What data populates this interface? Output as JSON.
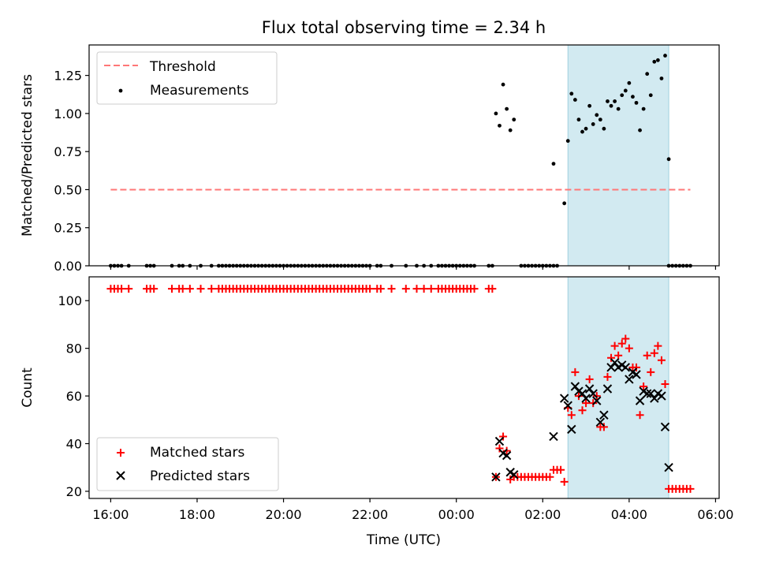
{
  "title": "Flux total observing time = 2.34 h",
  "xlabel": "Time (UTC)",
  "x_ticks": [
    "16:00",
    "18:00",
    "20:00",
    "22:00",
    "00:00",
    "02:00",
    "04:00",
    "06:00"
  ],
  "shade_color": "#add8e6",
  "chart_data": [
    {
      "type": "scatter",
      "ylabel": "Matched/Predicted stars",
      "ylim": [
        0,
        1.45
      ],
      "xlim": [
        "15:30",
        "06:05"
      ],
      "y_ticks": [
        "0.00",
        "0.25",
        "0.50",
        "0.75",
        "1.00",
        "1.25"
      ],
      "shaded_interval": [
        "02:35",
        "04:55"
      ],
      "legend": {
        "placement": "top-left",
        "entries": [
          "Threshold",
          "Measurements"
        ]
      },
      "threshold": {
        "name": "Threshold",
        "value": 0.5,
        "x_range": [
          "16:00",
          "05:25"
        ],
        "color": "#ff7777"
      },
      "measurements_zero_times": [
        "16:00",
        "16:05",
        "16:10",
        "16:15",
        "16:25",
        "16:50",
        "16:55",
        "17:00",
        "17:25",
        "17:35",
        "17:40",
        "17:50",
        "18:05",
        "18:20",
        "18:30",
        "18:35",
        "18:40",
        "18:45",
        "18:50",
        "18:55",
        "19:00",
        "19:05",
        "19:10",
        "19:15",
        "19:20",
        "19:25",
        "19:30",
        "19:35",
        "19:40",
        "19:45",
        "19:50",
        "19:55",
        "20:00",
        "20:05",
        "20:10",
        "20:15",
        "20:20",
        "20:25",
        "20:30",
        "20:35",
        "20:40",
        "20:45",
        "20:50",
        "20:55",
        "21:00",
        "21:05",
        "21:10",
        "21:15",
        "21:20",
        "21:25",
        "21:30",
        "21:35",
        "21:40",
        "21:45",
        "21:50",
        "21:55",
        "22:00",
        "22:10",
        "22:15",
        "22:30",
        "22:50",
        "23:05",
        "23:15",
        "23:25",
        "23:35",
        "23:40",
        "23:45",
        "23:50",
        "23:55",
        "00:00",
        "00:05",
        "00:10",
        "00:15",
        "00:20",
        "00:25",
        "00:45",
        "00:50",
        "01:30",
        "01:35",
        "01:40",
        "01:45",
        "01:50",
        "01:55",
        "02:00",
        "02:05",
        "02:10",
        "02:15",
        "02:20",
        "04:55",
        "05:00",
        "05:05",
        "05:10",
        "05:15",
        "05:20",
        "05:25"
      ],
      "measurements": [
        {
          "t": "00:55",
          "v": 1.0
        },
        {
          "t": "01:00",
          "v": 0.92
        },
        {
          "t": "01:05",
          "v": 1.19
        },
        {
          "t": "01:10",
          "v": 1.03
        },
        {
          "t": "01:15",
          "v": 0.89
        },
        {
          "t": "01:20",
          "v": 0.96
        },
        {
          "t": "02:15",
          "v": 0.67
        },
        {
          "t": "02:30",
          "v": 0.41
        },
        {
          "t": "02:35",
          "v": 0.82
        },
        {
          "t": "02:40",
          "v": 1.13
        },
        {
          "t": "02:45",
          "v": 1.09
        },
        {
          "t": "02:50",
          "v": 0.96
        },
        {
          "t": "02:55",
          "v": 0.88
        },
        {
          "t": "03:00",
          "v": 0.9
        },
        {
          "t": "03:05",
          "v": 1.05
        },
        {
          "t": "03:10",
          "v": 0.93
        },
        {
          "t": "03:15",
          "v": 0.99
        },
        {
          "t": "03:20",
          "v": 0.96
        },
        {
          "t": "03:25",
          "v": 0.9
        },
        {
          "t": "03:30",
          "v": 1.08
        },
        {
          "t": "03:35",
          "v": 1.05
        },
        {
          "t": "03:40",
          "v": 1.08
        },
        {
          "t": "03:45",
          "v": 1.03
        },
        {
          "t": "03:50",
          "v": 1.12
        },
        {
          "t": "03:55",
          "v": 1.15
        },
        {
          "t": "04:00",
          "v": 1.2
        },
        {
          "t": "04:05",
          "v": 1.11
        },
        {
          "t": "04:10",
          "v": 1.07
        },
        {
          "t": "04:15",
          "v": 0.89
        },
        {
          "t": "04:20",
          "v": 1.03
        },
        {
          "t": "04:25",
          "v": 1.26
        },
        {
          "t": "04:30",
          "v": 1.12
        },
        {
          "t": "04:35",
          "v": 1.34
        },
        {
          "t": "04:40",
          "v": 1.35
        },
        {
          "t": "04:45",
          "v": 1.23
        },
        {
          "t": "04:50",
          "v": 1.38
        },
        {
          "t": "04:55",
          "v": 0.7
        }
      ]
    },
    {
      "type": "scatter",
      "ylabel": "Count",
      "ylim": [
        17,
        110
      ],
      "xlim": [
        "15:30",
        "06:05"
      ],
      "y_ticks": [
        "20",
        "40",
        "60",
        "80",
        "100"
      ],
      "shaded_interval": [
        "02:35",
        "04:55"
      ],
      "legend": {
        "placement": "bottom-left",
        "entries": [
          "Matched stars",
          "Predicted stars"
        ]
      },
      "matched_105_times": [
        "16:00",
        "16:05",
        "16:10",
        "16:15",
        "16:25",
        "16:50",
        "16:55",
        "17:00",
        "17:25",
        "17:35",
        "17:40",
        "17:50",
        "18:05",
        "18:20",
        "18:30",
        "18:35",
        "18:40",
        "18:45",
        "18:50",
        "18:55",
        "19:00",
        "19:05",
        "19:10",
        "19:15",
        "19:20",
        "19:25",
        "19:30",
        "19:35",
        "19:40",
        "19:45",
        "19:50",
        "19:55",
        "20:00",
        "20:05",
        "20:10",
        "20:15",
        "20:20",
        "20:25",
        "20:30",
        "20:35",
        "20:40",
        "20:45",
        "20:50",
        "20:55",
        "21:00",
        "21:05",
        "21:10",
        "21:15",
        "21:20",
        "21:25",
        "21:30",
        "21:35",
        "21:40",
        "21:45",
        "21:50",
        "21:55",
        "22:00",
        "22:10",
        "22:15",
        "22:30",
        "22:50",
        "23:05",
        "23:15",
        "23:25",
        "23:35",
        "23:40",
        "23:45",
        "23:50",
        "23:55",
        "00:00",
        "00:05",
        "00:10",
        "00:15",
        "00:20",
        "00:25",
        "00:45",
        "00:50"
      ],
      "matched_stars": [
        {
          "t": "00:55",
          "v": 26
        },
        {
          "t": "01:00",
          "v": 38
        },
        {
          "t": "01:05",
          "v": 43
        },
        {
          "t": "01:10",
          "v": 37
        },
        {
          "t": "01:15",
          "v": 25
        },
        {
          "t": "01:20",
          "v": 26
        },
        {
          "t": "01:25",
          "v": 26
        },
        {
          "t": "01:30",
          "v": 26
        },
        {
          "t": "01:35",
          "v": 26
        },
        {
          "t": "01:40",
          "v": 26
        },
        {
          "t": "01:45",
          "v": 26
        },
        {
          "t": "01:50",
          "v": 26
        },
        {
          "t": "01:55",
          "v": 26
        },
        {
          "t": "02:00",
          "v": 26
        },
        {
          "t": "02:05",
          "v": 26
        },
        {
          "t": "02:10",
          "v": 26
        },
        {
          "t": "02:15",
          "v": 29
        },
        {
          "t": "02:20",
          "v": 29
        },
        {
          "t": "02:25",
          "v": 29
        },
        {
          "t": "02:30",
          "v": 24
        },
        {
          "t": "02:35",
          "v": 55
        },
        {
          "t": "02:40",
          "v": 52
        },
        {
          "t": "02:45",
          "v": 70
        },
        {
          "t": "02:50",
          "v": 60
        },
        {
          "t": "02:55",
          "v": 54
        },
        {
          "t": "03:00",
          "v": 57
        },
        {
          "t": "03:05",
          "v": 67
        },
        {
          "t": "03:10",
          "v": 57
        },
        {
          "t": "03:15",
          "v": 60
        },
        {
          "t": "03:20",
          "v": 47
        },
        {
          "t": "03:25",
          "v": 47
        },
        {
          "t": "03:30",
          "v": 68
        },
        {
          "t": "03:35",
          "v": 76
        },
        {
          "t": "03:40",
          "v": 81
        },
        {
          "t": "03:45",
          "v": 77
        },
        {
          "t": "03:50",
          "v": 82
        },
        {
          "t": "03:55",
          "v": 84
        },
        {
          "t": "04:00",
          "v": 80
        },
        {
          "t": "04:05",
          "v": 72
        },
        {
          "t": "04:10",
          "v": 72
        },
        {
          "t": "04:15",
          "v": 52
        },
        {
          "t": "04:20",
          "v": 64
        },
        {
          "t": "04:25",
          "v": 77
        },
        {
          "t": "04:30",
          "v": 70
        },
        {
          "t": "04:35",
          "v": 78
        },
        {
          "t": "04:40",
          "v": 81
        },
        {
          "t": "04:45",
          "v": 75
        },
        {
          "t": "04:50",
          "v": 65
        },
        {
          "t": "04:55",
          "v": 21
        },
        {
          "t": "05:00",
          "v": 21
        },
        {
          "t": "05:05",
          "v": 21
        },
        {
          "t": "05:10",
          "v": 21
        },
        {
          "t": "05:15",
          "v": 21
        },
        {
          "t": "05:20",
          "v": 21
        },
        {
          "t": "05:25",
          "v": 21
        }
      ],
      "predicted_stars": [
        {
          "t": "00:55",
          "v": 26
        },
        {
          "t": "01:00",
          "v": 41
        },
        {
          "t": "01:05",
          "v": 36
        },
        {
          "t": "01:10",
          "v": 35
        },
        {
          "t": "01:15",
          "v": 28
        },
        {
          "t": "01:20",
          "v": 27
        },
        {
          "t": "02:15",
          "v": 43
        },
        {
          "t": "02:30",
          "v": 59
        },
        {
          "t": "02:35",
          "v": 56
        },
        {
          "t": "02:40",
          "v": 46
        },
        {
          "t": "02:45",
          "v": 64
        },
        {
          "t": "02:50",
          "v": 62
        },
        {
          "t": "02:55",
          "v": 61
        },
        {
          "t": "03:00",
          "v": 59
        },
        {
          "t": "03:05",
          "v": 63
        },
        {
          "t": "03:10",
          "v": 61
        },
        {
          "t": "03:15",
          "v": 58
        },
        {
          "t": "03:20",
          "v": 49
        },
        {
          "t": "03:25",
          "v": 52
        },
        {
          "t": "03:30",
          "v": 63
        },
        {
          "t": "03:35",
          "v": 72
        },
        {
          "t": "03:40",
          "v": 74
        },
        {
          "t": "03:45",
          "v": 72
        },
        {
          "t": "03:50",
          "v": 73
        },
        {
          "t": "03:55",
          "v": 72
        },
        {
          "t": "04:00",
          "v": 67
        },
        {
          "t": "04:05",
          "v": 70
        },
        {
          "t": "04:10",
          "v": 69
        },
        {
          "t": "04:15",
          "v": 58
        },
        {
          "t": "04:20",
          "v": 62
        },
        {
          "t": "04:25",
          "v": 61
        },
        {
          "t": "04:30",
          "v": 61
        },
        {
          "t": "04:35",
          "v": 59
        },
        {
          "t": "04:40",
          "v": 61
        },
        {
          "t": "04:45",
          "v": 60
        },
        {
          "t": "04:50",
          "v": 47
        },
        {
          "t": "04:55",
          "v": 30
        }
      ]
    }
  ]
}
